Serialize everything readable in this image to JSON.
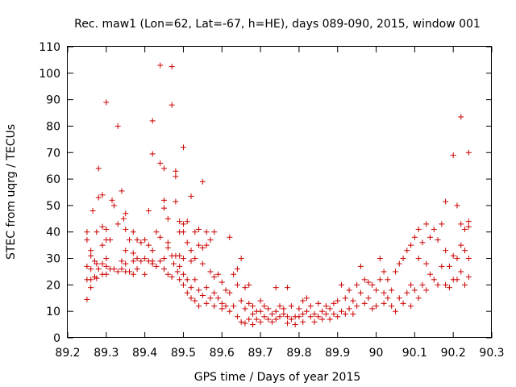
{
  "chart_data": {
    "type": "scatter",
    "title": "Rec. maw1 (Lon=62, Lat=-67, h=HE), days 089-090, 2015, window 001",
    "xlabel": "GPS time / Days of year 2015",
    "ylabel": "STEC from uqrg / TECUs",
    "xlim": [
      89.2,
      90.3
    ],
    "ylim": [
      0,
      110
    ],
    "xticks": [
      "89.2",
      "89.3",
      "89.4",
      "89.5",
      "89.6",
      "89.7",
      "89.8",
      "89.9",
      "90",
      "90.1",
      "90.2",
      "90.3"
    ],
    "yticks": [
      "0",
      "10",
      "20",
      "30",
      "40",
      "50",
      "60",
      "70",
      "80",
      "90",
      "100",
      "110"
    ],
    "marker": "+",
    "color": "#cc0000",
    "grid": false,
    "points": [
      [
        89.25,
        40
      ],
      [
        89.25,
        37
      ],
      [
        89.25,
        27
      ],
      [
        89.25,
        22
      ],
      [
        89.25,
        14.5
      ],
      [
        89.26,
        33
      ],
      [
        89.26,
        31
      ],
      [
        89.26,
        26
      ],
      [
        89.26,
        22
      ],
      [
        89.26,
        19
      ],
      [
        89.265,
        48
      ],
      [
        89.27,
        29
      ],
      [
        89.27,
        23
      ],
      [
        89.275,
        40
      ],
      [
        89.275,
        28
      ],
      [
        89.275,
        22.5
      ],
      [
        89.28,
        64
      ],
      [
        89.28,
        53
      ],
      [
        89.28,
        26
      ],
      [
        89.29,
        54
      ],
      [
        89.29,
        42
      ],
      [
        89.29,
        35
      ],
      [
        89.29,
        28
      ],
      [
        89.29,
        24
      ],
      [
        89.3,
        89
      ],
      [
        89.3,
        41
      ],
      [
        89.3,
        37
      ],
      [
        89.3,
        30
      ],
      [
        89.3,
        27
      ],
      [
        89.3,
        24
      ],
      [
        89.31,
        37
      ],
      [
        89.31,
        26
      ],
      [
        89.315,
        52
      ],
      [
        89.32,
        50
      ],
      [
        89.32,
        26
      ],
      [
        89.33,
        80
      ],
      [
        89.33,
        43
      ],
      [
        89.33,
        25
      ],
      [
        89.34,
        55.5
      ],
      [
        89.34,
        29
      ],
      [
        89.34,
        26
      ],
      [
        89.345,
        45
      ],
      [
        89.35,
        47
      ],
      [
        89.35,
        41
      ],
      [
        89.35,
        33
      ],
      [
        89.35,
        28
      ],
      [
        89.35,
        25
      ],
      [
        89.36,
        37
      ],
      [
        89.36,
        25
      ],
      [
        89.37,
        40
      ],
      [
        89.37,
        32
      ],
      [
        89.37,
        29
      ],
      [
        89.37,
        24
      ],
      [
        89.38,
        37
      ],
      [
        89.38,
        30
      ],
      [
        89.38,
        26
      ],
      [
        89.39,
        36
      ],
      [
        89.39,
        29
      ],
      [
        89.4,
        37
      ],
      [
        89.4,
        30
      ],
      [
        89.4,
        24
      ],
      [
        89.41,
        48
      ],
      [
        89.41,
        35
      ],
      [
        89.41,
        29
      ],
      [
        89.42,
        82
      ],
      [
        89.42,
        69.5
      ],
      [
        89.42,
        33
      ],
      [
        89.42,
        29
      ],
      [
        89.42,
        28
      ],
      [
        89.43,
        40
      ],
      [
        89.43,
        27
      ],
      [
        89.44,
        103
      ],
      [
        89.44,
        66
      ],
      [
        89.44,
        38
      ],
      [
        89.44,
        29
      ],
      [
        89.45,
        64
      ],
      [
        89.45,
        49
      ],
      [
        89.45,
        52
      ],
      [
        89.45,
        30
      ],
      [
        89.45,
        26
      ],
      [
        89.46,
        45
      ],
      [
        89.46,
        36
      ],
      [
        89.46,
        34
      ],
      [
        89.46,
        24
      ],
      [
        89.47,
        102.5
      ],
      [
        89.47,
        88
      ],
      [
        89.47,
        31
      ],
      [
        89.47,
        23
      ],
      [
        89.475,
        28
      ],
      [
        89.48,
        63
      ],
      [
        89.48,
        61
      ],
      [
        89.48,
        51.5
      ],
      [
        89.48,
        31
      ],
      [
        89.485,
        25
      ],
      [
        89.49,
        44
      ],
      [
        89.49,
        40
      ],
      [
        89.49,
        31
      ],
      [
        89.49,
        27
      ],
      [
        89.49,
        22
      ],
      [
        89.5,
        72
      ],
      [
        89.5,
        40
      ],
      [
        89.5,
        43
      ],
      [
        89.5,
        30
      ],
      [
        89.5,
        24
      ],
      [
        89.5,
        20
      ],
      [
        89.51,
        44
      ],
      [
        89.51,
        36
      ],
      [
        89.51,
        22
      ],
      [
        89.51,
        17
      ],
      [
        89.52,
        53.5
      ],
      [
        89.52,
        33
      ],
      [
        89.52,
        29
      ],
      [
        89.52,
        19
      ],
      [
        89.52,
        15
      ],
      [
        89.53,
        40
      ],
      [
        89.53,
        30
      ],
      [
        89.53,
        22
      ],
      [
        89.53,
        14
      ],
      [
        89.54,
        41
      ],
      [
        89.54,
        35
      ],
      [
        89.54,
        18
      ],
      [
        89.54,
        12
      ],
      [
        89.55,
        59
      ],
      [
        89.55,
        34
      ],
      [
        89.55,
        28
      ],
      [
        89.55,
        16
      ],
      [
        89.56,
        40
      ],
      [
        89.56,
        35
      ],
      [
        89.56,
        19
      ],
      [
        89.56,
        13
      ],
      [
        89.57,
        37
      ],
      [
        89.57,
        25
      ],
      [
        89.57,
        15
      ],
      [
        89.58,
        40
      ],
      [
        89.58,
        23
      ],
      [
        89.58,
        17
      ],
      [
        89.58,
        12
      ],
      [
        89.59,
        24
      ],
      [
        89.59,
        15
      ],
      [
        89.6,
        21
      ],
      [
        89.6,
        13
      ],
      [
        89.6,
        11
      ],
      [
        89.61,
        18
      ],
      [
        89.61,
        12
      ],
      [
        89.62,
        38
      ],
      [
        89.62,
        17
      ],
      [
        89.62,
        10
      ],
      [
        89.63,
        24
      ],
      [
        89.63,
        12
      ],
      [
        89.64,
        26
      ],
      [
        89.64,
        20
      ],
      [
        89.64,
        8
      ],
      [
        89.65,
        30
      ],
      [
        89.65,
        14
      ],
      [
        89.65,
        6
      ],
      [
        89.66,
        19
      ],
      [
        89.66,
        11
      ],
      [
        89.66,
        5.5
      ],
      [
        89.67,
        20
      ],
      [
        89.67,
        13
      ],
      [
        89.67,
        7
      ],
      [
        89.68,
        12
      ],
      [
        89.68,
        9
      ],
      [
        89.68,
        5
      ],
      [
        89.69,
        10
      ],
      [
        89.69,
        7
      ],
      [
        89.7,
        14
      ],
      [
        89.7,
        10
      ],
      [
        89.7,
        6
      ],
      [
        89.71,
        12
      ],
      [
        89.71,
        8
      ],
      [
        89.72,
        11
      ],
      [
        89.72,
        7
      ],
      [
        89.73,
        9
      ],
      [
        89.73,
        6
      ],
      [
        89.74,
        19
      ],
      [
        89.74,
        10
      ],
      [
        89.74,
        7
      ],
      [
        89.75,
        12
      ],
      [
        89.75,
        8
      ],
      [
        89.76,
        11
      ],
      [
        89.76,
        9
      ],
      [
        89.77,
        19
      ],
      [
        89.77,
        8
      ],
      [
        89.77,
        5.5
      ],
      [
        89.78,
        12
      ],
      [
        89.78,
        7
      ],
      [
        89.79,
        8
      ],
      [
        89.79,
        5
      ],
      [
        89.8,
        11
      ],
      [
        89.8,
        8
      ],
      [
        89.81,
        14
      ],
      [
        89.81,
        9
      ],
      [
        89.81,
        6
      ],
      [
        89.82,
        15
      ],
      [
        89.82,
        10
      ],
      [
        89.83,
        12
      ],
      [
        89.83,
        8
      ],
      [
        89.84,
        9
      ],
      [
        89.84,
        6
      ],
      [
        89.85,
        13
      ],
      [
        89.85,
        8
      ],
      [
        89.86,
        10
      ],
      [
        89.86,
        7
      ],
      [
        89.87,
        12
      ],
      [
        89.87,
        9
      ],
      [
        89.88,
        11
      ],
      [
        89.88,
        7
      ],
      [
        89.89,
        13
      ],
      [
        89.89,
        9
      ],
      [
        89.9,
        14
      ],
      [
        89.9,
        8
      ],
      [
        89.91,
        20
      ],
      [
        89.91,
        10
      ],
      [
        89.92,
        15
      ],
      [
        89.92,
        9
      ],
      [
        89.93,
        18
      ],
      [
        89.93,
        11
      ],
      [
        89.94,
        14
      ],
      [
        89.94,
        9
      ],
      [
        89.95,
        20
      ],
      [
        89.95,
        12
      ],
      [
        89.96,
        27
      ],
      [
        89.96,
        17
      ],
      [
        89.97,
        22
      ],
      [
        89.97,
        13
      ],
      [
        89.98,
        21
      ],
      [
        89.98,
        15
      ],
      [
        89.99,
        20
      ],
      [
        89.99,
        11
      ],
      [
        90.0,
        18
      ],
      [
        90.0,
        12
      ],
      [
        90.01,
        30
      ],
      [
        90.01,
        22
      ],
      [
        90.02,
        25
      ],
      [
        90.02,
        17
      ],
      [
        90.02,
        13
      ],
      [
        90.03,
        22
      ],
      [
        90.03,
        15
      ],
      [
        90.04,
        18
      ],
      [
        90.04,
        12
      ],
      [
        90.05,
        25
      ],
      [
        90.05,
        10
      ],
      [
        90.06,
        28
      ],
      [
        90.06,
        15
      ],
      [
        90.07,
        30
      ],
      [
        90.07,
        13
      ],
      [
        90.08,
        33
      ],
      [
        90.08,
        17
      ],
      [
        90.09,
        35
      ],
      [
        90.09,
        20
      ],
      [
        90.09,
        12
      ],
      [
        90.1,
        38
      ],
      [
        90.1,
        18
      ],
      [
        90.11,
        41
      ],
      [
        90.11,
        30
      ],
      [
        90.11,
        15
      ],
      [
        90.12,
        36
      ],
      [
        90.12,
        20
      ],
      [
        90.13,
        43
      ],
      [
        90.13,
        28
      ],
      [
        90.13,
        18
      ],
      [
        90.14,
        38
      ],
      [
        90.14,
        24
      ],
      [
        90.15,
        41
      ],
      [
        90.15,
        22
      ],
      [
        90.16,
        37
      ],
      [
        90.16,
        20
      ],
      [
        90.17,
        43
      ],
      [
        90.17,
        27
      ],
      [
        90.18,
        51.5
      ],
      [
        90.18,
        33
      ],
      [
        90.18,
        20
      ],
      [
        90.19,
        27
      ],
      [
        90.19,
        19
      ],
      [
        90.2,
        69
      ],
      [
        90.2,
        31
      ],
      [
        90.2,
        22
      ],
      [
        90.21,
        50
      ],
      [
        90.21,
        30
      ],
      [
        90.21,
        22
      ],
      [
        90.22,
        83.5
      ],
      [
        90.22,
        43
      ],
      [
        90.22,
        35
      ],
      [
        90.22,
        25
      ],
      [
        90.23,
        41
      ],
      [
        90.23,
        33
      ],
      [
        90.23,
        20
      ],
      [
        90.24,
        70
      ],
      [
        90.24,
        44
      ],
      [
        90.24,
        42
      ],
      [
        90.24,
        30
      ],
      [
        90.24,
        23
      ]
    ]
  }
}
